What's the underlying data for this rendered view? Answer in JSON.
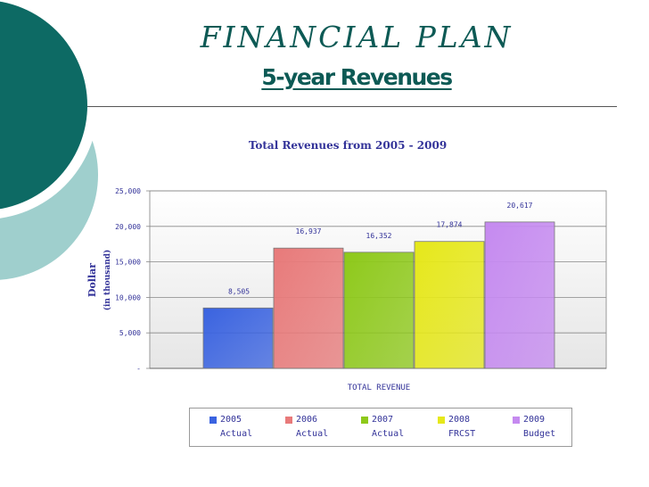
{
  "slide": {
    "title": "FINANCIAL PLAN",
    "subtitle": "5-year Revenues"
  },
  "colors": {
    "accent_dark": "#0d5a55",
    "accent_light": "#9fcfcd",
    "text_blue": "#333399"
  },
  "chart_data": {
    "type": "bar",
    "title": "Total Revenues from 2005 - 2009",
    "xlabel": "TOTAL REVENUE",
    "ylabel": "Dollar",
    "ylabel_sub": "(in thousand)",
    "ylim": [
      0,
      25000
    ],
    "yticks": [
      "-",
      "5,000",
      "10,000",
      "15,000",
      "20,000",
      "25,000"
    ],
    "grid": true,
    "legend_position": "bottom",
    "series": [
      {
        "year": "2005",
        "label": "Actual",
        "value": 8505,
        "value_label": "8,505",
        "color": "#3a63e0"
      },
      {
        "year": "2006",
        "label": "Actual",
        "value": 16937,
        "value_label": "16,937",
        "color": "#e87a7a"
      },
      {
        "year": "2007",
        "label": "Actual",
        "value": 16352,
        "value_label": "16,352",
        "color": "#8ec91a"
      },
      {
        "year": "2008",
        "label": "FRCST",
        "value": 17874,
        "value_label": "17,874",
        "color": "#e6e81a"
      },
      {
        "year": "2009",
        "label": "Budget",
        "value": 20617,
        "value_label": "20,617",
        "color": "#c58af0"
      }
    ]
  }
}
